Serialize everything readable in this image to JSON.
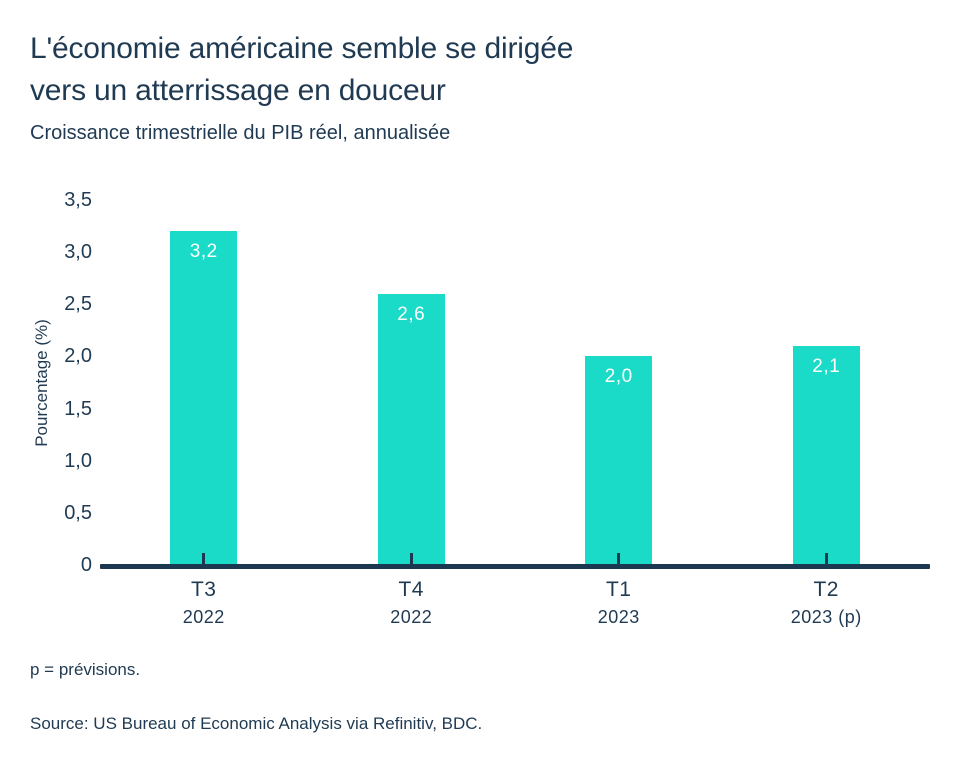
{
  "header": {
    "title_lines": [
      "L'économie américaine semble se dirigée",
      "vers un atterrissage en douceur"
    ],
    "subtitle": "Croissance trimestrielle du PIB réel, annualisée"
  },
  "footer": {
    "note": "p = prévisions.",
    "source": "Source: US Bureau of Economic Analysis via Refinitiv, BDC."
  },
  "colors": {
    "bar": "#1adbc8",
    "text_navy": "#1f3a52",
    "axis": "#1c3850",
    "value_label": "#ffffff"
  },
  "chart_data": {
    "type": "bar",
    "title": "L'économie américaine semble se dirigée vers un atterrissage en douceur",
    "subtitle": "Croissance trimestrielle du PIB réel, annualisée",
    "categories": [
      "T3 2022",
      "T4 2022",
      "T1 2023",
      "T2 2023 (p)"
    ],
    "x_labels": [
      {
        "quarter": "T3",
        "year": "2022"
      },
      {
        "quarter": "T4",
        "year": "2022"
      },
      {
        "quarter": "T1",
        "year": "2023"
      },
      {
        "quarter": "T2",
        "year": "2023 (p)"
      }
    ],
    "values": [
      3.2,
      2.6,
      2.0,
      2.1
    ],
    "value_labels": [
      "3,2",
      "2,6",
      "2,0",
      "2,1"
    ],
    "xlabel": "",
    "ylabel": "Pourcentage (%)",
    "ylim": [
      0,
      3.5
    ],
    "yticks": [
      0,
      0.5,
      1.0,
      1.5,
      2.0,
      2.5,
      3.0,
      3.5
    ],
    "ytick_labels": [
      "0",
      "0,5",
      "1,0",
      "1,5",
      "2,0",
      "2,5",
      "3,0",
      "3,5"
    ],
    "grid": false,
    "legend": false,
    "bar_labels_inside": true
  }
}
